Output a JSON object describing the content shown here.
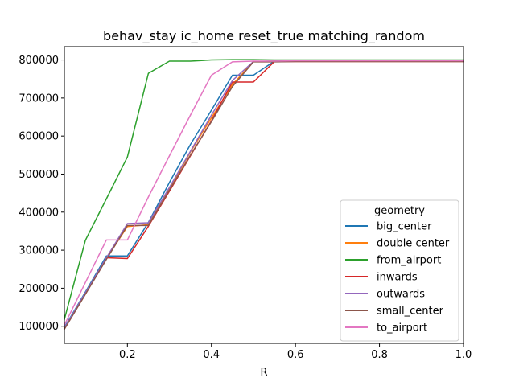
{
  "chart_data": {
    "type": "line",
    "title": "behav_stay ic_home reset_true matching_random",
    "xlabel": "R",
    "ylabel": "",
    "xlim": [
      0.05,
      1.0
    ],
    "ylim": [
      55000,
      835000
    ],
    "xticks": [
      0.2,
      0.4,
      0.6,
      0.8,
      1.0
    ],
    "xtick_labels": [
      "0.2",
      "0.4",
      "0.6",
      "0.8",
      "1.0"
    ],
    "yticks": [
      100000,
      200000,
      300000,
      400000,
      500000,
      600000,
      700000,
      800000
    ],
    "ytick_labels": [
      "100000",
      "200000",
      "300000",
      "400000",
      "500000",
      "600000",
      "700000",
      "800000"
    ],
    "grid": false,
    "legend": {
      "title": "geometry",
      "placement": "lower-right"
    },
    "x": [
      0.05,
      0.1,
      0.15,
      0.2,
      0.25,
      0.3,
      0.35,
      0.4,
      0.45,
      0.5,
      0.55,
      0.6,
      0.65,
      0.7,
      0.75,
      0.8,
      0.85,
      0.9,
      0.95,
      1.0
    ],
    "series": [
      {
        "name": "big_center",
        "color": "#1f77b4",
        "values": [
          97000,
          190000,
          285000,
          285000,
          373000,
          478000,
          578000,
          668000,
          760000,
          760000,
          797000,
          798000,
          798000,
          798000,
          798000,
          798000,
          798000,
          798000,
          798000,
          798000
        ]
      },
      {
        "name": "double center",
        "color": "#ff7f0e",
        "values": [
          94000,
          185000,
          278000,
          362000,
          367000,
          462000,
          558000,
          648000,
          735000,
          796000,
          797000,
          797000,
          797000,
          798000,
          798000,
          798000,
          798000,
          798000,
          798000,
          798000
        ]
      },
      {
        "name": "from_airport",
        "color": "#2ca02c",
        "values": [
          118000,
          326000,
          435000,
          545000,
          765000,
          797000,
          797000,
          800000,
          801000,
          801000,
          800000,
          800000,
          800000,
          800000,
          800000,
          800000,
          800000,
          800000,
          800000,
          800000
        ]
      },
      {
        "name": "inwards",
        "color": "#d62728",
        "values": [
          93000,
          185000,
          280000,
          278000,
          363000,
          455000,
          548000,
          640000,
          742000,
          742000,
          796000,
          796000,
          796000,
          796000,
          796000,
          796000,
          796000,
          796000,
          796000,
          796000
        ]
      },
      {
        "name": "outwards",
        "color": "#9467bd",
        "values": [
          95000,
          188000,
          280000,
          370000,
          372000,
          465000,
          560000,
          655000,
          746000,
          796000,
          797000,
          797000,
          797000,
          797000,
          797000,
          797000,
          797000,
          797000,
          797000,
          797000
        ]
      },
      {
        "name": "small_center",
        "color": "#8c564b",
        "values": [
          92000,
          184000,
          276000,
          365000,
          365000,
          458000,
          550000,
          638000,
          730000,
          795000,
          795000,
          796000,
          796000,
          796000,
          796000,
          796000,
          796000,
          796000,
          796000,
          796000
        ]
      },
      {
        "name": "to_airport",
        "color": "#e377c2",
        "values": [
          103000,
          215000,
          327000,
          327000,
          440000,
          548000,
          655000,
          760000,
          795000,
          797000,
          797000,
          798000,
          798000,
          798000,
          798000,
          798000,
          798000,
          798000,
          798000,
          798000
        ]
      }
    ]
  }
}
